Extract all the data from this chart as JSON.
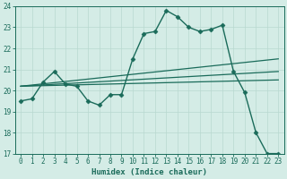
{
  "title": "",
  "xlabel": "Humidex (Indice chaleur)",
  "ylabel": "",
  "background_color": "#d4ece6",
  "grid_color": "#b8d8d0",
  "line_color": "#1a6b5a",
  "xlim": [
    -0.5,
    23.5
  ],
  "ylim": [
    17,
    24
  ],
  "yticks": [
    17,
    18,
    19,
    20,
    21,
    22,
    23,
    24
  ],
  "xticks": [
    0,
    1,
    2,
    3,
    4,
    5,
    6,
    7,
    8,
    9,
    10,
    11,
    12,
    13,
    14,
    15,
    16,
    17,
    18,
    19,
    20,
    21,
    22,
    23
  ],
  "series": [
    {
      "x": [
        0,
        1,
        2,
        3,
        4,
        5,
        6,
        7,
        8,
        9,
        10,
        11,
        12,
        13,
        14,
        15,
        16,
        17,
        18,
        19,
        20,
        21,
        22,
        23
      ],
      "y": [
        19.5,
        19.6,
        20.4,
        20.9,
        20.3,
        20.2,
        19.5,
        19.3,
        19.8,
        19.8,
        21.5,
        22.7,
        22.8,
        23.8,
        23.5,
        23.0,
        22.8,
        22.9,
        23.1,
        20.9,
        19.9,
        18.0,
        17.0,
        17.0
      ],
      "marker": "D",
      "markersize": 2.5,
      "linewidth": 1.0,
      "linestyle": "-"
    },
    {
      "x": [
        0,
        23
      ],
      "y": [
        20.2,
        21.5
      ],
      "marker": null,
      "markersize": 0,
      "linewidth": 0.9,
      "linestyle": "-"
    },
    {
      "x": [
        0,
        23
      ],
      "y": [
        20.2,
        20.9
      ],
      "marker": null,
      "markersize": 0,
      "linewidth": 0.9,
      "linestyle": "-"
    },
    {
      "x": [
        0,
        23
      ],
      "y": [
        20.2,
        20.5
      ],
      "marker": null,
      "markersize": 0,
      "linewidth": 0.9,
      "linestyle": "-"
    }
  ]
}
